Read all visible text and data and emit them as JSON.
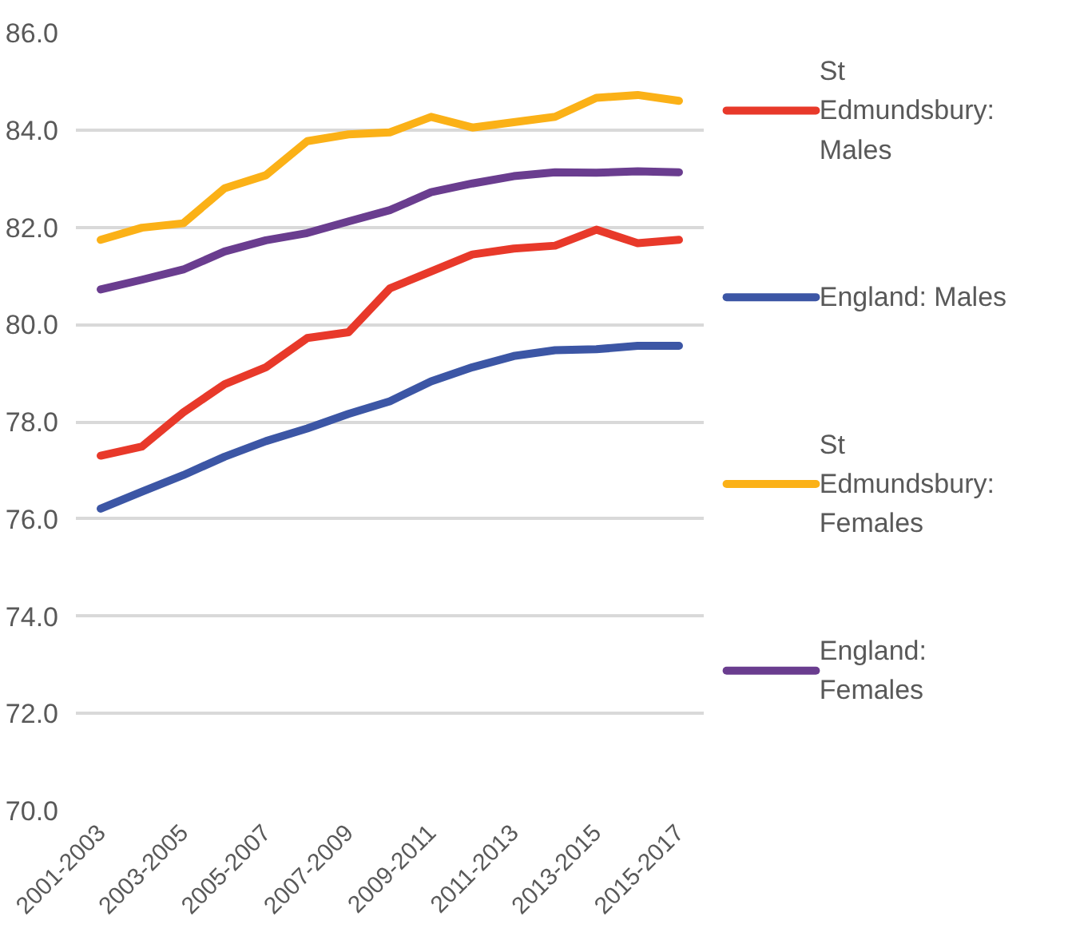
{
  "chart_data": {
    "type": "line",
    "categories": [
      "2001-2003",
      null,
      "2003-2005",
      null,
      "2005-2007",
      null,
      "2007-2009",
      null,
      "2009-2011",
      null,
      "2011-2013",
      null,
      "2013-2015",
      null,
      "2015-2017"
    ],
    "series": [
      {
        "name": "St Edmundsbury: Males",
        "color": "#e8392a",
        "values": [
          77.3,
          77.49,
          78.19,
          78.77,
          79.12,
          79.72,
          79.84,
          80.74,
          81.09,
          81.44,
          81.56,
          81.62,
          81.95,
          81.67,
          81.74
        ]
      },
      {
        "name": "England: Males",
        "color": "#3c56a5",
        "values": [
          76.21,
          76.56,
          76.9,
          77.28,
          77.6,
          77.86,
          78.16,
          78.42,
          78.83,
          79.12,
          79.35,
          79.47,
          79.49,
          79.56,
          79.56
        ]
      },
      {
        "name": "St Edmundsbury: Females",
        "color": "#fbb117",
        "values": [
          81.74,
          81.99,
          82.08,
          82.8,
          83.07,
          83.77,
          83.91,
          83.95,
          84.27,
          84.05,
          84.16,
          84.27,
          84.66,
          84.72,
          84.6
        ]
      },
      {
        "name": "England: Females",
        "color": "#6a3d8f",
        "values": [
          80.72,
          80.92,
          81.13,
          81.5,
          81.73,
          81.88,
          82.12,
          82.35,
          82.72,
          82.9,
          83.05,
          83.13,
          83.12,
          83.15,
          83.13
        ]
      }
    ],
    "ylim": [
      70,
      86
    ],
    "yticks": [
      {
        "value": 70,
        "label": "70.0"
      },
      {
        "value": 72,
        "label": "72.0"
      },
      {
        "value": 74,
        "label": "74.0"
      },
      {
        "value": 76,
        "label": "76.0"
      },
      {
        "value": 78,
        "label": "78.0"
      },
      {
        "value": 80,
        "label": "80.0"
      },
      {
        "value": 82,
        "label": "82.0"
      },
      {
        "value": 84,
        "label": "84.0"
      },
      {
        "value": 86,
        "label": "86.0"
      }
    ],
    "grid": "y",
    "legend": "right",
    "marker": "none",
    "line_style": "solid"
  }
}
